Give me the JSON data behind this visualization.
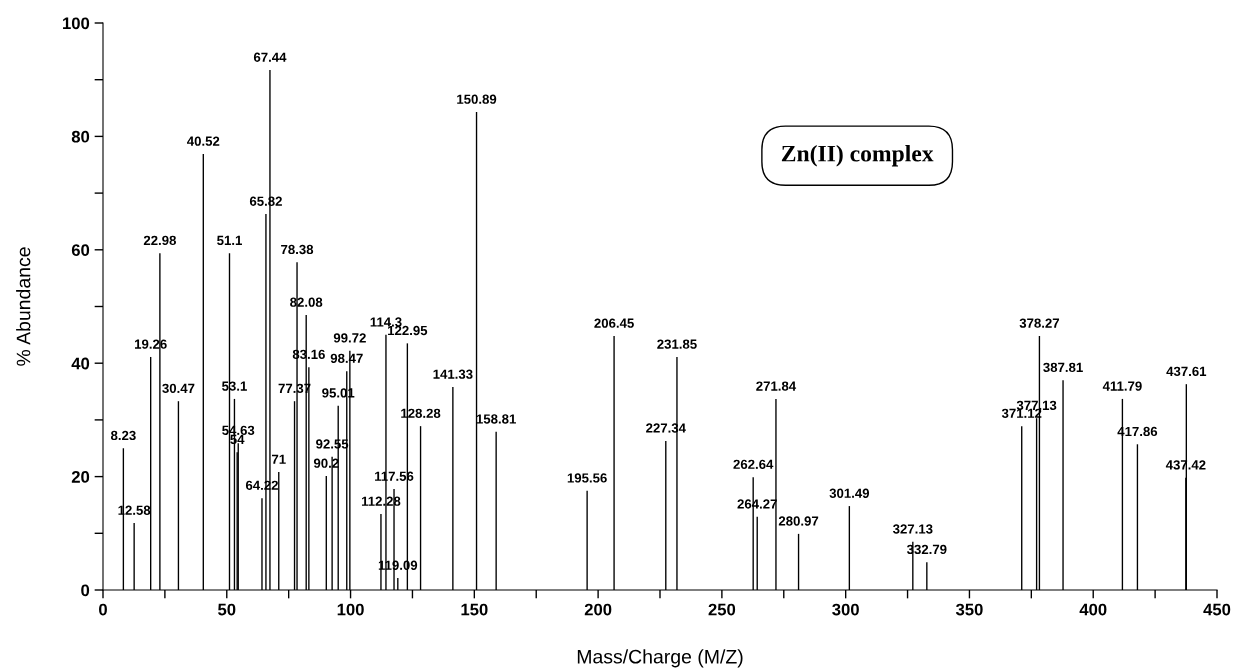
{
  "chart_data": {
    "type": "bar",
    "xlabel": "Mass/Charge (M/Z)",
    "ylabel": "% Abundance",
    "x": [
      8.23,
      12.58,
      19.26,
      22.98,
      30.47,
      40.52,
      51.1,
      53.1,
      54.2,
      54.63,
      64.22,
      65.82,
      67.44,
      71,
      77.37,
      78.38,
      82.08,
      83.16,
      90.2,
      92.55,
      95.01,
      98.47,
      99.72,
      112.28,
      114.3,
      117.56,
      119.09,
      122.95,
      128.28,
      141.33,
      150.89,
      158.81,
      195.56,
      206.45,
      227.34,
      231.85,
      262.64,
      264.27,
      271.84,
      280.97,
      301.49,
      327.13,
      332.79,
      371.12,
      377.13,
      378.27,
      387.81,
      411.79,
      417.86,
      437.42,
      437.61
    ],
    "values": [
      25.0,
      11.8,
      41.1,
      59.4,
      33.3,
      76.9,
      59.4,
      33.7,
      24.3,
      25.9,
      16.2,
      66.3,
      91.7,
      20.8,
      33.3,
      57.8,
      48.5,
      39.3,
      20.1,
      23.5,
      32.5,
      38.6,
      42.2,
      13.4,
      45.0,
      17.8,
      2.1,
      43.5,
      28.9,
      35.8,
      84.3,
      27.9,
      17.5,
      44.8,
      26.3,
      41.1,
      19.9,
      12.9,
      33.7,
      9.9,
      14.8,
      8.5,
      4.9,
      28.9,
      30.3,
      44.8,
      37.0,
      33.7,
      25.7,
      19.8,
      36.3
    ],
    "color": "#000000",
    "annotations": [
      {
        "text": "8.23",
        "x": 8.23,
        "y": 25.0
      },
      {
        "text": "12.58",
        "x": 12.58,
        "y": 11.8
      },
      {
        "text": "19.26",
        "x": 19.26,
        "y": 41.1
      },
      {
        "text": "22.98",
        "x": 22.98,
        "y": 59.4
      },
      {
        "text": "30.47",
        "x": 30.47,
        "y": 33.3
      },
      {
        "text": "40.52",
        "x": 40.52,
        "y": 76.9
      },
      {
        "text": "51.1",
        "x": 51.1,
        "y": 59.4
      },
      {
        "text": "53.1",
        "x": 53.1,
        "y": 33.7
      },
      {
        "text": "54",
        "x": 54.2,
        "y": 24.3
      },
      {
        "text": "54.63",
        "x": 54.63,
        "y": 25.9
      },
      {
        "text": "64.22",
        "x": 64.22,
        "y": 16.2
      },
      {
        "text": "65.82",
        "x": 65.82,
        "y": 66.3
      },
      {
        "text": "67.44",
        "x": 67.44,
        "y": 91.7
      },
      {
        "text": "71",
        "x": 71,
        "y": 20.8
      },
      {
        "text": "77.37",
        "x": 77.37,
        "y": 33.3
      },
      {
        "text": "78.38",
        "x": 78.38,
        "y": 57.8
      },
      {
        "text": "82.08",
        "x": 82.08,
        "y": 48.5
      },
      {
        "text": "83.16",
        "x": 83.16,
        "y": 39.3
      },
      {
        "text": "90.2",
        "x": 90.2,
        "y": 20.1
      },
      {
        "text": "92.55",
        "x": 92.55,
        "y": 23.5
      },
      {
        "text": "95.01",
        "x": 95.01,
        "y": 32.5
      },
      {
        "text": "98.47",
        "x": 98.47,
        "y": 38.6
      },
      {
        "text": "99.72",
        "x": 99.72,
        "y": 42.2
      },
      {
        "text": "112.28",
        "x": 112.28,
        "y": 13.4
      },
      {
        "text": "114.3",
        "x": 114.3,
        "y": 45.0
      },
      {
        "text": "117.56",
        "x": 117.56,
        "y": 17.8
      },
      {
        "text": "119.09",
        "x": 119.09,
        "y": 2.1
      },
      {
        "text": "122.95",
        "x": 122.95,
        "y": 43.5
      },
      {
        "text": "128.28",
        "x": 128.28,
        "y": 28.9
      },
      {
        "text": "141.33",
        "x": 141.33,
        "y": 35.8
      },
      {
        "text": "150.89",
        "x": 150.89,
        "y": 84.3
      },
      {
        "text": "158.81",
        "x": 158.81,
        "y": 27.9
      },
      {
        "text": "195.56",
        "x": 195.56,
        "y": 17.5
      },
      {
        "text": "206.45",
        "x": 206.45,
        "y": 44.8
      },
      {
        "text": "227.34",
        "x": 227.34,
        "y": 26.3
      },
      {
        "text": "231.85",
        "x": 231.85,
        "y": 41.1
      },
      {
        "text": "262.64",
        "x": 262.64,
        "y": 19.9
      },
      {
        "text": "264.27",
        "x": 264.27,
        "y": 12.9
      },
      {
        "text": "271.84",
        "x": 271.84,
        "y": 33.7
      },
      {
        "text": "280.97",
        "x": 280.97,
        "y": 9.9
      },
      {
        "text": "301.49",
        "x": 301.49,
        "y": 14.8
      },
      {
        "text": "327.13",
        "x": 327.13,
        "y": 8.5
      },
      {
        "text": "332.79",
        "x": 332.79,
        "y": 4.9
      },
      {
        "text": "371.12",
        "x": 371.12,
        "y": 28.9
      },
      {
        "text": "377.13",
        "x": 377.13,
        "y": 30.3
      },
      {
        "text": "378.27",
        "x": 378.27,
        "y": 44.8
      },
      {
        "text": "387.81",
        "x": 387.81,
        "y": 37.0
      },
      {
        "text": "411.79",
        "x": 411.79,
        "y": 33.7
      },
      {
        "text": "417.86",
        "x": 417.86,
        "y": 25.7
      },
      {
        "text": "437.42",
        "x": 437.42,
        "y": 19.8
      },
      {
        "text": "437.61",
        "x": 437.61,
        "y": 36.3
      },
      "Zn(II) complex"
    ],
    "xlim": [
      0,
      450
    ],
    "xticks": [
      0,
      {
        "value": 25,
        "label": null
      },
      50,
      {
        "value": 75,
        "label": null
      },
      100,
      {
        "value": 125,
        "label": null
      },
      150,
      {
        "value": 175,
        "label": null
      },
      200,
      {
        "value": 225,
        "label": null
      },
      250,
      {
        "value": 275,
        "label": null
      },
      300,
      {
        "value": 325,
        "label": null
      },
      350,
      {
        "value": 375,
        "label": null
      },
      400,
      {
        "value": 425,
        "label": null
      },
      450
    ],
    "ylim": [
      0,
      100
    ],
    "yticks": [
      0,
      {
        "value": 10,
        "label": null
      },
      20,
      {
        "value": 30,
        "label": null
      },
      40,
      {
        "value": 50,
        "label": null
      },
      60,
      {
        "value": 70,
        "label": null
      },
      80,
      {
        "value": 90,
        "label": null
      },
      100
    ],
    "grid": false
  }
}
